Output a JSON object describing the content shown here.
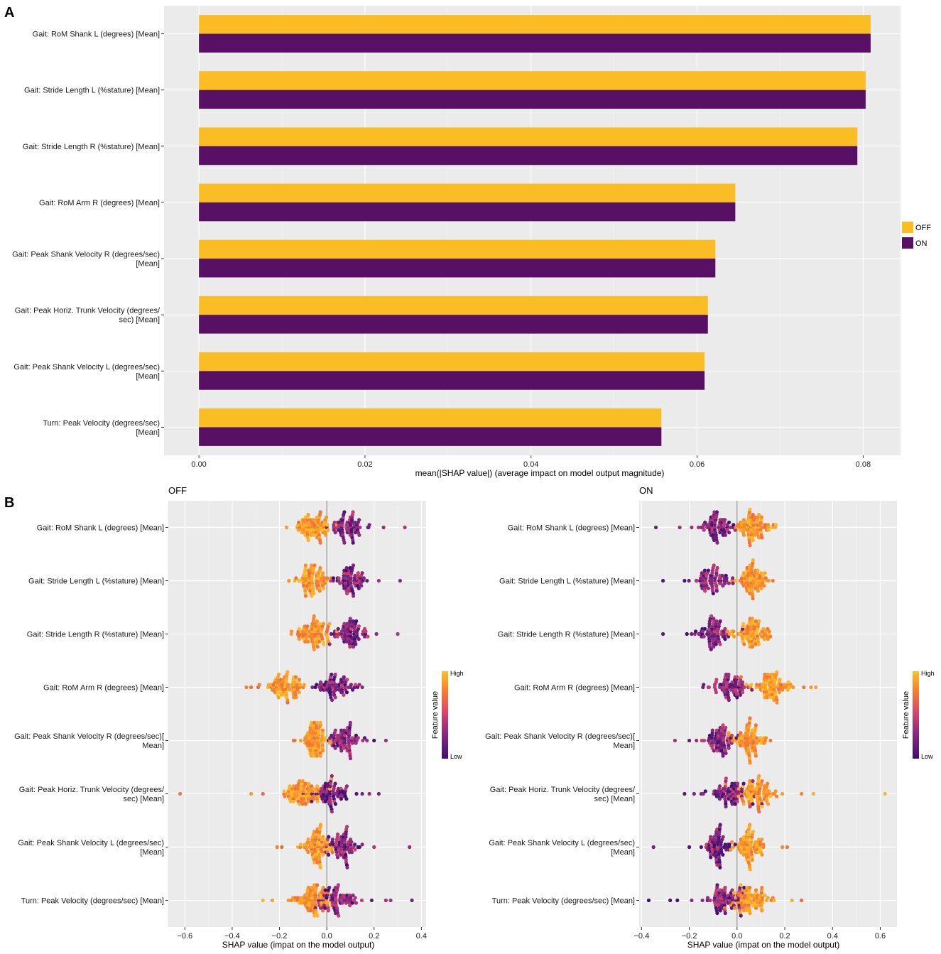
{
  "figure": {
    "panel_a_letter": "A",
    "panel_b_letter": "B"
  },
  "chart_data": [
    {
      "type": "bar",
      "id": "A",
      "title": "",
      "xlabel": "mean(|SHAP value|) (average impact on model output magnitude)",
      "ylabel": "",
      "orientation": "horizontal",
      "xlim": [
        -0.0042,
        0.0845
      ],
      "ticks": [
        "0.00",
        "0.02",
        "0.04",
        "0.06",
        "0.08"
      ],
      "categories": [
        [
          "Gait: RoM Shank L (degrees) [Mean]"
        ],
        [
          "Gait: Stride Length L (%stature) [Mean]"
        ],
        [
          "Gait: Stride Length R (%stature) [Mean]"
        ],
        [
          "Gait: RoM Arm R (degrees) [Mean]"
        ],
        [
          "Gait: Peak Shank Velocity R (degrees/sec)",
          "[Mean]"
        ],
        [
          "Gait: Peak Horiz. Trunk Velocity (degrees/",
          "sec) [Mean]"
        ],
        [
          "Gait: Peak Shank Velocity L (degrees/sec)",
          "[Mean]"
        ],
        [
          "Turn: Peak Velocity (degrees/sec)",
          "[Mean]"
        ]
      ],
      "series": [
        {
          "name": "OFF",
          "color": "#FBBD24",
          "values": [
            0.0809,
            0.0803,
            0.0793,
            0.0646,
            0.0622,
            0.0613,
            0.0609,
            0.0557
          ]
        },
        {
          "name": "ON",
          "color": "#571064",
          "values": [
            0.0809,
            0.0803,
            0.0793,
            0.0646,
            0.0622,
            0.0613,
            0.0609,
            0.0557
          ]
        }
      ],
      "legend_position": "right"
    },
    {
      "type": "scatter",
      "id": "B-OFF",
      "title": "OFF",
      "xlabel": "SHAP value  (impat on the model output)",
      "xlim": [
        -0.67,
        0.42
      ],
      "ticks": [
        "-0.6",
        "-0.4",
        "-0.2",
        "0.0",
        "0.2",
        "0.4"
      ],
      "categories": [
        [
          "Gait: RoM Shank L (degrees) [Mean]"
        ],
        [
          "Gait: Stride Length L (%stature) [Mean]"
        ],
        [
          "Gait: Stride Length R (%stature) [Mean]"
        ],
        [
          "Gait: RoM Arm R (degrees) [Mean]"
        ],
        [
          "Gait: Peak Shank Velocity R (degrees/sec)[",
          "Mean]"
        ],
        [
          "Gait: Peak Horiz. Trunk Velocity (degrees/",
          "sec) [Mean]"
        ],
        [
          "Gait: Peak Shank Velocity L (degrees/sec)",
          "[Mean]"
        ],
        [
          "Turn: Peak Velocity (degrees/sec) [Mean]"
        ]
      ],
      "colorbar": {
        "title": "Feature value",
        "high": "High",
        "low": "Low"
      },
      "features": [
        {
          "low_center": 0.09,
          "high_center": -0.055,
          "spread": 0.035,
          "outliers_low": [
            0.24,
            0.33,
            0.18
          ],
          "outliers_high": [
            -0.17,
            -0.12
          ]
        },
        {
          "low_center": 0.1,
          "high_center": -0.06,
          "spread": 0.035,
          "outliers_low": [
            0.31,
            0.22,
            0.17
          ],
          "outliers_high": [
            -0.16,
            -0.13
          ]
        },
        {
          "low_center": 0.1,
          "high_center": -0.055,
          "spread": 0.035,
          "outliers_low": [
            0.3,
            0.21,
            0.16
          ],
          "outliers_high": [
            -0.15,
            -0.12
          ]
        },
        {
          "low_center": 0.03,
          "high_center": -0.17,
          "spread": 0.04,
          "outliers_low": [
            0.15,
            0.13
          ],
          "outliers_high": [
            -0.34,
            -0.32,
            -0.29,
            -0.21
          ]
        },
        {
          "low_center": 0.07,
          "high_center": -0.05,
          "spread": 0.03,
          "outliers_low": [
            0.25,
            0.2,
            0.17
          ],
          "outliers_high": [
            -0.14,
            -0.11
          ]
        },
        {
          "low_center": 0.02,
          "high_center": -0.1,
          "spread": 0.04,
          "outliers_low": [
            0.22,
            0.18,
            0.15
          ],
          "outliers_high": [
            -0.62,
            -0.32,
            -0.27,
            -0.18
          ]
        },
        {
          "low_center": 0.07,
          "high_center": -0.04,
          "spread": 0.03,
          "outliers_low": [
            0.35,
            0.2,
            0.15
          ],
          "outliers_high": [
            -0.21,
            -0.19,
            -0.11
          ]
        },
        {
          "low_center": 0.05,
          "high_center": -0.06,
          "spread": 0.04,
          "outliers_low": [
            0.36,
            0.27,
            0.25,
            0.19
          ],
          "outliers_high": [
            -0.27,
            -0.23,
            -0.15
          ]
        }
      ]
    },
    {
      "type": "scatter",
      "id": "B-ON",
      "title": "ON",
      "xlabel": "SHAP value  (impat on the model output)",
      "xlim": [
        -0.41,
        0.67
      ],
      "ticks": [
        "-0.4",
        "-0.2",
        "0.0",
        "0.2",
        "0.4",
        "0.6"
      ],
      "categories": [
        [
          "Gait: RoM Shank L (degrees) [Mean]"
        ],
        [
          "Gait: Stride Length L (%stature) [Mean]"
        ],
        [
          "Gait: Stride Length R (%stature) [Mean]"
        ],
        [
          "Gait: RoM Arm R (degrees) [Mean]"
        ],
        [
          "Gait: Peak Shank Velocity R (degrees/sec)[",
          "Mean]"
        ],
        [
          "Gait: Peak Horiz. Trunk Velocity (degrees/",
          "sec) [Mean]"
        ],
        [
          "Gait: Peak Shank Velocity L (degrees/sec)",
          "[Mean]"
        ],
        [
          "Turn: Peak Velocity (degrees/sec) [Mean]"
        ]
      ],
      "colorbar": {
        "title": "Feature value",
        "high": "High",
        "low": "Low"
      },
      "features": [
        {
          "low_center": -0.09,
          "high_center": 0.065,
          "spread": 0.035,
          "outliers_low": [
            -0.34,
            -0.24,
            -0.19
          ],
          "outliers_high": [
            0.16,
            0.13
          ]
        },
        {
          "low_center": -0.1,
          "high_center": 0.065,
          "spread": 0.035,
          "outliers_low": [
            -0.31,
            -0.22,
            -0.17
          ],
          "outliers_high": [
            0.15,
            0.12
          ]
        },
        {
          "low_center": -0.1,
          "high_center": 0.06,
          "spread": 0.035,
          "outliers_low": [
            -0.31,
            -0.21,
            -0.16
          ],
          "outliers_high": [
            0.14,
            0.12
          ]
        },
        {
          "low_center": -0.03,
          "high_center": 0.15,
          "spread": 0.04,
          "outliers_low": [
            -0.14,
            -0.12
          ],
          "outliers_high": [
            0.33,
            0.31,
            0.28,
            0.19
          ]
        },
        {
          "low_center": -0.07,
          "high_center": 0.05,
          "spread": 0.03,
          "outliers_low": [
            -0.26,
            -0.2,
            -0.17
          ],
          "outliers_high": [
            0.14,
            0.11
          ]
        },
        {
          "low_center": -0.03,
          "high_center": 0.09,
          "spread": 0.04,
          "outliers_low": [
            -0.22,
            -0.18,
            -0.15
          ],
          "outliers_high": [
            0.62,
            0.32,
            0.27,
            0.19
          ]
        },
        {
          "low_center": -0.08,
          "high_center": 0.05,
          "spread": 0.03,
          "outliers_low": [
            -0.35,
            -0.2,
            -0.15
          ],
          "outliers_high": [
            0.21,
            0.19,
            0.11
          ]
        },
        {
          "low_center": -0.05,
          "high_center": 0.05,
          "spread": 0.04,
          "outliers_low": [
            -0.37,
            -0.28,
            -0.25,
            -0.19
          ],
          "outliers_high": [
            0.27,
            0.23,
            0.15
          ]
        }
      ]
    }
  ]
}
